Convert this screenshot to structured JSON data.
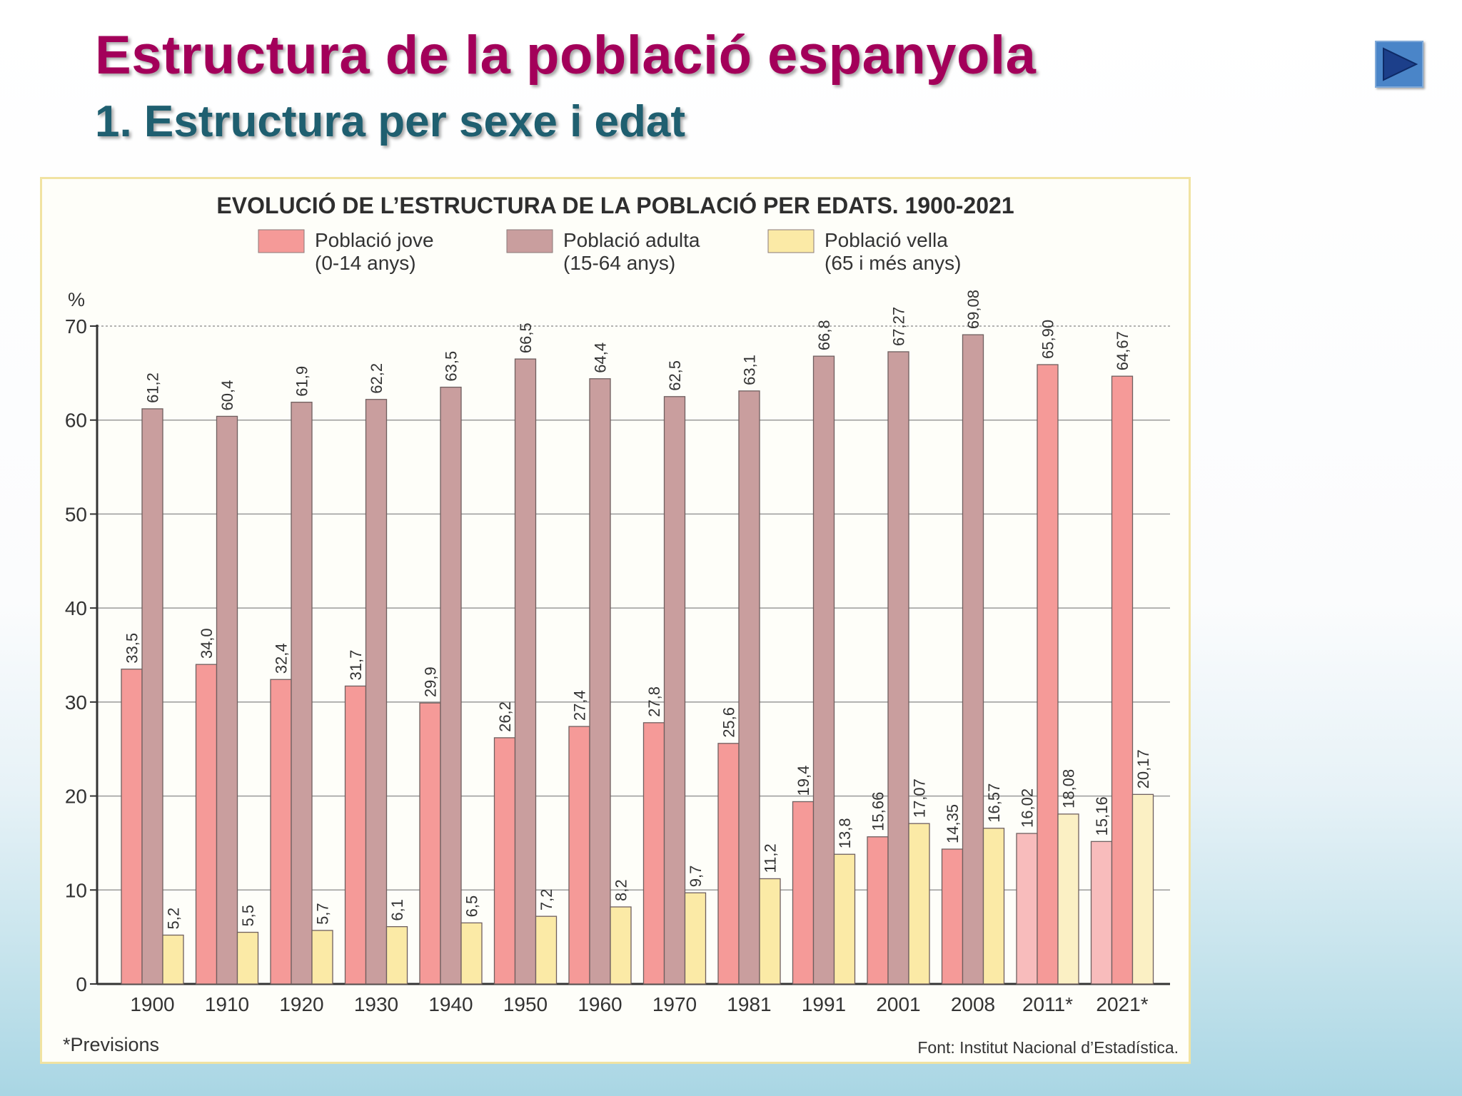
{
  "slide": {
    "title": "Estructura de la població espanyola",
    "subtitle": "1. Estructura per sexe i edat",
    "next_button_icon": "play-triangle-icon"
  },
  "colors": {
    "title": "#a3005a",
    "subtitle": "#1f5f70",
    "jove": "#f59a98",
    "adulta": "#c99e9e",
    "vella": "#fbeaa6",
    "jove_forecast": "#f8bcbc",
    "vella_forecast": "#fbf0c4"
  },
  "chart_data": {
    "type": "bar",
    "title": "EVOLUCIÓ DE L’ESTRUCTURA DE LA POBLACIÓ PER EDATS. 1900-2021",
    "ylabel": "%",
    "xlabel": "",
    "ylim": [
      0,
      70
    ],
    "yticks": [
      0,
      10,
      20,
      30,
      40,
      50,
      60,
      70
    ],
    "grid": true,
    "legend_position": "top",
    "categories": [
      "1900",
      "1910",
      "1920",
      "1930",
      "1940",
      "1950",
      "1960",
      "1970",
      "1981",
      "1991",
      "2001",
      "2008",
      "2011*",
      "2021*"
    ],
    "series": [
      {
        "key": "jove",
        "name": "Població jove",
        "sub": "(0-14 anys)",
        "values": [
          33.5,
          34.0,
          32.4,
          31.7,
          29.9,
          26.2,
          27.4,
          27.8,
          25.6,
          19.4,
          15.66,
          14.35,
          16.02,
          15.16
        ],
        "labels": [
          "33,5",
          "34,0",
          "32,4",
          "31,7",
          "29,9",
          "26,2",
          "27,4",
          "27,8",
          "25,6",
          "19,4",
          "15,66",
          "14,35",
          "16,02",
          "15,16"
        ]
      },
      {
        "key": "adulta",
        "name": "Població adulta",
        "sub": "(15-64 anys)",
        "values": [
          61.2,
          60.4,
          61.9,
          62.2,
          63.5,
          66.5,
          64.4,
          62.5,
          63.1,
          66.8,
          67.27,
          69.08,
          65.9,
          64.67
        ],
        "labels": [
          "61,2",
          "60,4",
          "61,9",
          "62,2",
          "63,5",
          "66,5",
          "64,4",
          "62,5",
          "63,1",
          "66,8",
          "67,27",
          "69,08",
          "65,90",
          "64,67"
        ]
      },
      {
        "key": "vella",
        "name": "Població vella",
        "sub": "(65 i més anys)",
        "values": [
          5.2,
          5.5,
          5.7,
          6.1,
          6.5,
          7.2,
          8.2,
          9.7,
          11.2,
          13.8,
          17.07,
          16.57,
          18.08,
          20.17
        ],
        "labels": [
          "5,2",
          "5,5",
          "5,7",
          "6,1",
          "6,5",
          "7,2",
          "8,2",
          "9,7",
          "11,2",
          "13,8",
          "17,07",
          "16,57",
          "18,08",
          "20,17"
        ]
      }
    ],
    "footnote": "*Previsions",
    "source": "Font: Institut Nacional d’Estadística."
  }
}
